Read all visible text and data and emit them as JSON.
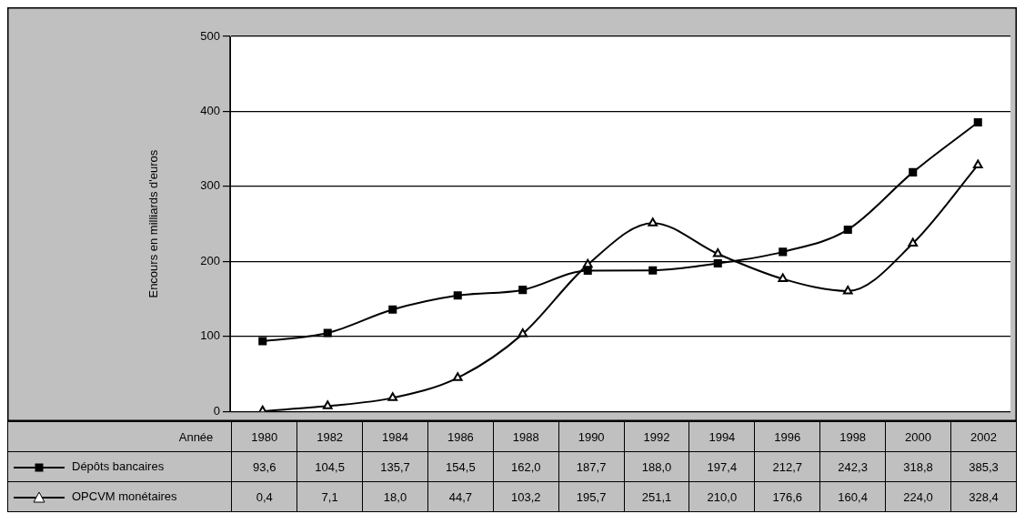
{
  "chart_data": {
    "type": "line",
    "xlabel": "Année",
    "ylabel": "Encours en milliards d'euros",
    "categories": [
      "1980",
      "1982",
      "1984",
      "1986",
      "1988",
      "1990",
      "1992",
      "1994",
      "1996",
      "1998",
      "2000",
      "2002"
    ],
    "series": [
      {
        "name": "Dépôts bancaires",
        "color": "#000000",
        "marker": "square",
        "values": [
          93.6,
          104.5,
          135.7,
          154.5,
          162.0,
          187.7,
          188.0,
          197.4,
          212.7,
          242.3,
          318.8,
          385.3
        ],
        "value_labels": [
          "93,6",
          "104,5",
          "135,7",
          "154,5",
          "162,0",
          "187,7",
          "188,0",
          "197,4",
          "212,7",
          "242,3",
          "318,8",
          "385,3"
        ]
      },
      {
        "name": "OPCVM monétaires",
        "color": "#000000",
        "marker": "triangle",
        "values": [
          0.4,
          7.1,
          18.0,
          44.7,
          103.2,
          195.7,
          251.1,
          210.0,
          176.6,
          160.4,
          224.0,
          328.4
        ],
        "value_labels": [
          "0,4",
          "7,1",
          "18,0",
          "44,7",
          "103,2",
          "195,7",
          "251,1",
          "210,0",
          "176,6",
          "160,4",
          "224,0",
          "328,4"
        ]
      }
    ],
    "ylim": [
      0,
      500
    ],
    "yticks": [
      0,
      100,
      200,
      300,
      400,
      500
    ],
    "grid": "y",
    "legend": "bottom"
  }
}
